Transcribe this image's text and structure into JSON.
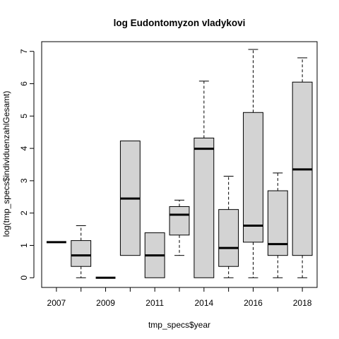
{
  "chart_data": {
    "type": "boxplot",
    "title": "log Eudontomyzon vladykovi",
    "xlabel": "tmp_specs$year",
    "ylabel": "log(tmp_specs$individuenzahlGesamt)",
    "ylim": [
      -0.3,
      7.3
    ],
    "y_ticks": [
      0,
      1,
      2,
      3,
      4,
      5,
      6,
      7
    ],
    "x_tick_labels": [
      "2007",
      "2009",
      "2011",
      "2014",
      "2016",
      "2018"
    ],
    "categories": [
      "2007",
      "2008",
      "2009",
      "2010",
      "2011",
      "2012",
      "2014",
      "2015",
      "2016",
      "2017",
      "2018"
    ],
    "boxes": [
      {
        "year": "2007",
        "min": 1.1,
        "q1": 1.1,
        "median": 1.1,
        "q3": 1.1,
        "max": 1.1
      },
      {
        "year": "2008",
        "min": 0.0,
        "q1": 0.35,
        "median": 0.69,
        "q3": 1.15,
        "max": 1.61
      },
      {
        "year": "2009",
        "min": 0.0,
        "q1": 0.0,
        "median": 0.0,
        "q3": 0.0,
        "max": 0.0
      },
      {
        "year": "2010",
        "min": 0.69,
        "q1": 0.69,
        "median": 2.45,
        "q3": 4.23,
        "max": 4.23
      },
      {
        "year": "2011",
        "min": 0.0,
        "q1": 0.0,
        "median": 0.69,
        "q3": 1.39,
        "max": 1.39
      },
      {
        "year": "2012",
        "min": 0.69,
        "q1": 1.32,
        "median": 1.95,
        "q3": 2.2,
        "max": 2.4
      },
      {
        "year": "2014",
        "min": 0.0,
        "q1": 0.0,
        "median": 3.99,
        "q3": 4.32,
        "max": 6.08
      },
      {
        "year": "2015",
        "min": 0.0,
        "q1": 0.35,
        "median": 0.92,
        "q3": 2.11,
        "max": 3.14
      },
      {
        "year": "2016",
        "min": 0.0,
        "q1": 1.1,
        "median": 1.61,
        "q3": 5.11,
        "max": 7.06
      },
      {
        "year": "2017",
        "min": 0.0,
        "q1": 0.69,
        "median": 1.04,
        "q3": 2.69,
        "max": 3.24
      },
      {
        "year": "2018",
        "min": 0.0,
        "q1": 0.69,
        "median": 3.35,
        "q3": 6.05,
        "max": 6.8
      }
    ],
    "box_fill": "#d3d3d3",
    "grid": false
  }
}
